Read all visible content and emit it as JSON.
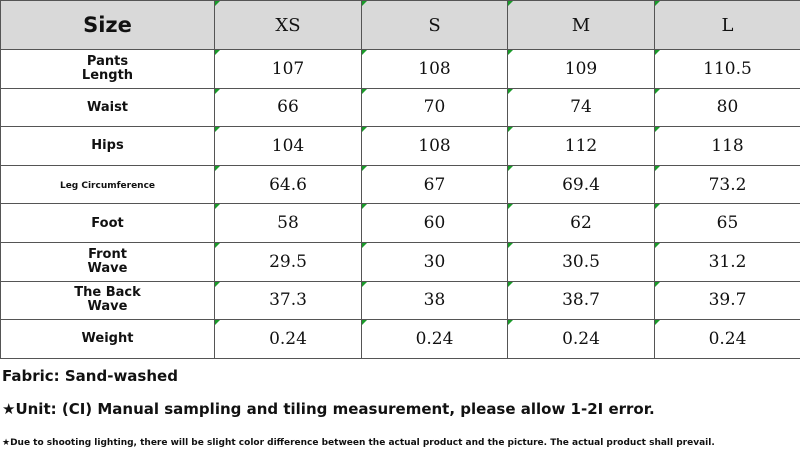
{
  "table": {
    "header": [
      "Size",
      "XS",
      "S",
      "M",
      "L"
    ],
    "rows": [
      [
        "Pants Length",
        "107",
        "108",
        "109",
        "110.5"
      ],
      [
        "Waist",
        "66",
        "70",
        "74",
        "80"
      ],
      [
        "Hips",
        "104",
        "108",
        "112",
        "118"
      ],
      [
        "Leg Circumference",
        "64.6",
        "67",
        "69.4",
        "73.2"
      ],
      [
        "Foot",
        "58",
        "60",
        "62",
        "65"
      ],
      [
        "Front Wave",
        "29.5",
        "30",
        "30.5",
        "31.2"
      ],
      [
        "The Back Wave",
        "37.3",
        "38",
        "38.7",
        "39.7"
      ],
      [
        "Weight",
        "0.24",
        "0.24",
        "0.24",
        "0.24"
      ]
    ]
  },
  "notes": [
    "Fabric: Sand-washed",
    "★Unit: (CI) Manual sampling and tiling measurement, please allow 1-2I error.",
    "★Due to shooting lighting, there will be slight color difference between the actual product and the picture. The actual product shall prevail."
  ]
}
